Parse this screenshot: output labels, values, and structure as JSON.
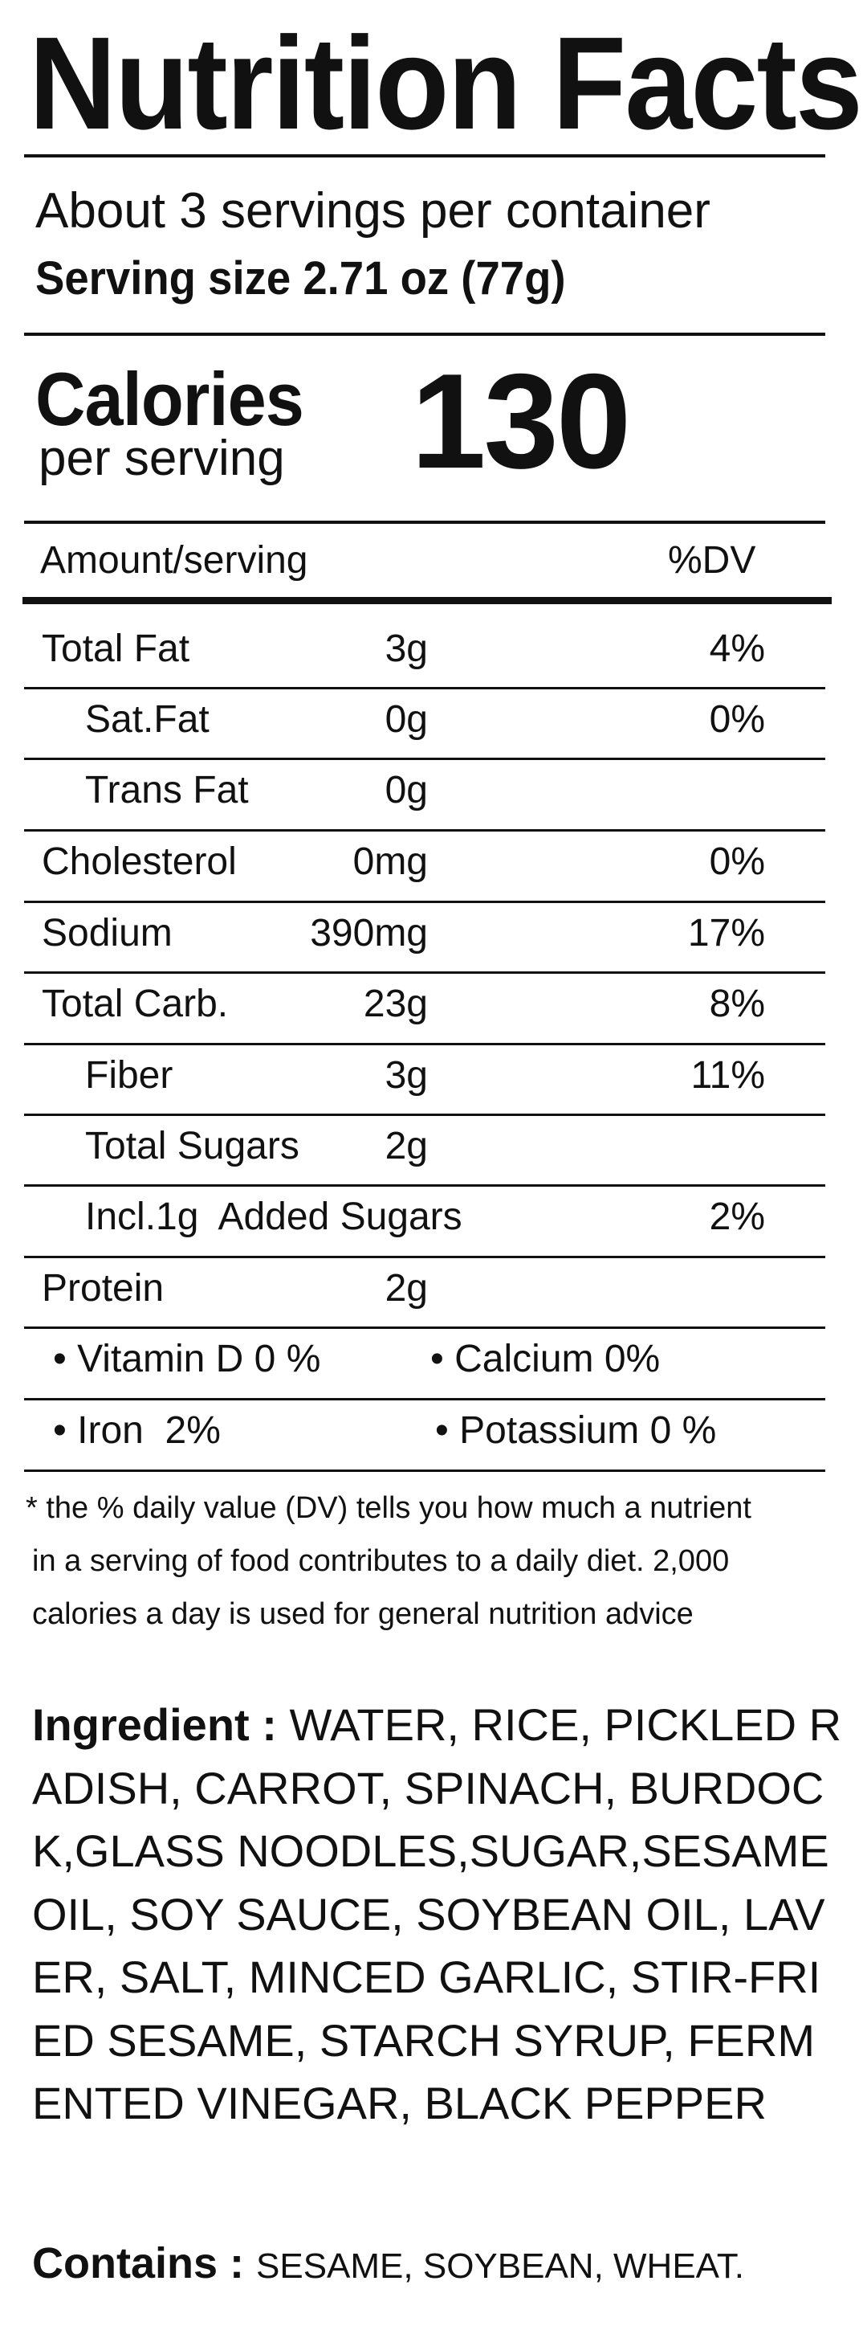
{
  "label": {
    "title": "Nutrition Facts",
    "servings_per_container": "About 3 servings per container",
    "serving_size": "Serving size 2.71 oz (77g)",
    "calories_label": "Calories",
    "calories_sublabel": "per serving",
    "calories_value": "130",
    "header_amount": "Amount/serving",
    "header_dv": "%DV",
    "nutrients": [
      {
        "name": "Total Fat",
        "amount": "3g",
        "dv": "4%"
      },
      {
        "name": "Sat.Fat",
        "amount": "0g",
        "dv": "0%"
      },
      {
        "name": "Trans Fat",
        "amount": "0g",
        "dv": ""
      },
      {
        "name": "Cholesterol",
        "amount": "0mg",
        "dv": "0%"
      },
      {
        "name": "Sodium",
        "amount": "390mg",
        "dv": "17%"
      },
      {
        "name": "Total Carb.",
        "amount": "23g",
        "dv": "8%"
      },
      {
        "name": "Fiber",
        "amount": "3g",
        "dv": "11%"
      },
      {
        "name": "Total Sugars",
        "amount": "2g",
        "dv": ""
      },
      {
        "name": "Incl.1g  Added Sugars",
        "amount": "",
        "dv": "2%"
      },
      {
        "name": "Protein",
        "amount": "2g",
        "dv": ""
      }
    ],
    "vitamins": [
      [
        "• Vitamin D 0 %",
        "• Calcium 0%"
      ],
      [
        "• Iron  2%",
        "• Potassium 0 %"
      ]
    ],
    "footnote": [
      "* the % daily value (DV) tells you how much a nutrient",
      "in a serving of food contributes to a daily diet. 2,000",
      "calories a day is used for general nutrition advice"
    ]
  },
  "ingredients": {
    "label": "Ingredient : ",
    "text": "WATER, RICE, PICKLED RADISH, CARROT, SPINACH, BURDOCK,GLASS NOODLES,SUGAR,SESAME OIL, SOY SAUCE, SOYBEAN OIL, LAVER, SALT, MINCED GARLIC, STIR-FRIED SESAME, STARCH SYRUP, FERMENTED VINEGAR, BLACK PEPPER"
  },
  "contains": {
    "label": "Contains : ",
    "text": "SESAME, SOYBEAN, WHEAT."
  }
}
